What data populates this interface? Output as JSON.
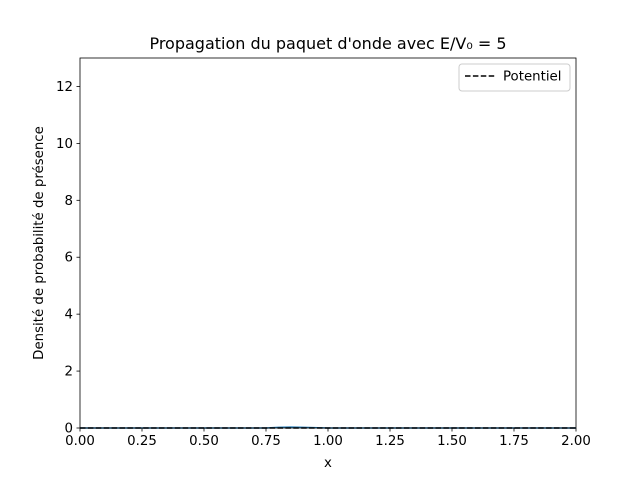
{
  "chart_data": {
    "type": "line",
    "title": "Propagation du paquet d'onde avec E/V₀ = 5",
    "xlabel": "x",
    "ylabel": "Densité de probabilité de présence",
    "xlim": [
      0,
      2.0
    ],
    "ylim": [
      0,
      13
    ],
    "xticks": [
      0.0,
      0.25,
      0.5,
      0.75,
      1.0,
      1.25,
      1.5,
      1.75,
      2.0
    ],
    "xtick_labels": [
      "0.00",
      "0.25",
      "0.50",
      "0.75",
      "1.00",
      "1.25",
      "1.50",
      "1.75",
      "2.00"
    ],
    "yticks": [
      0,
      2,
      4,
      6,
      8,
      10,
      12
    ],
    "ytick_labels": [
      "0",
      "2",
      "4",
      "6",
      "8",
      "10",
      "12"
    ],
    "grid": false,
    "legend": {
      "position": "upper-right",
      "entries": [
        "Potentiel"
      ]
    },
    "series": [
      {
        "color": "#1f77b4",
        "style": "solid",
        "x": [
          0.0,
          0.25,
          0.5,
          0.75,
          0.8,
          0.85,
          0.9,
          1.0,
          1.25,
          1.5,
          1.75,
          2.0
        ],
        "y": [
          0,
          0,
          0,
          0,
          0.02,
          0.03,
          0.02,
          0,
          0,
          0,
          0,
          0
        ]
      },
      {
        "name": "Potentiel",
        "color": "#000000",
        "style": "dashed",
        "x": [
          0.0,
          2.0
        ],
        "y": [
          0,
          0
        ]
      }
    ]
  }
}
